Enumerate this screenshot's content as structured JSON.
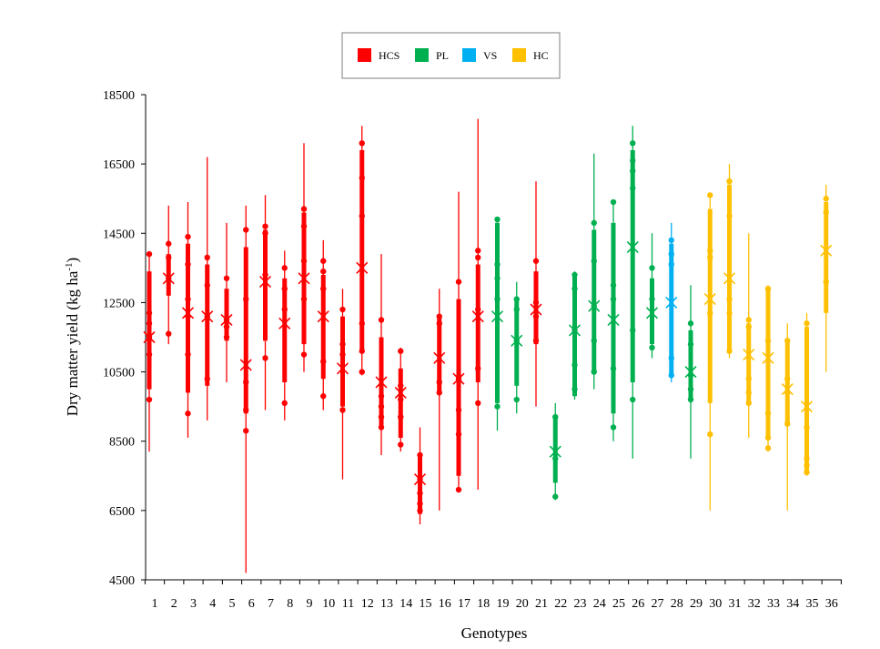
{
  "chart_data": {
    "type": "box",
    "title": "",
    "xlabel": "Genotypes",
    "ylabel_main": "Dry matter yield (kg ha",
    "ylabel_sup": "-1",
    "ylabel_close": ")",
    "ylim": [
      4500,
      18500
    ],
    "yticks": [
      4500,
      6500,
      8500,
      10500,
      12500,
      14500,
      16500,
      18500
    ],
    "categories": [
      "1",
      "2",
      "3",
      "4",
      "5",
      "6",
      "7",
      "8",
      "9",
      "10",
      "11",
      "12",
      "13",
      "14",
      "15",
      "16",
      "17",
      "18",
      "19",
      "20",
      "21",
      "22",
      "23",
      "24",
      "25",
      "26",
      "27",
      "28",
      "29",
      "30",
      "31",
      "32",
      "33",
      "34",
      "35",
      "36"
    ],
    "legend": [
      {
        "name": "HCS",
        "color": "#ff0000"
      },
      {
        "name": "PL",
        "color": "#00b050"
      },
      {
        "name": "VS",
        "color": "#00b0f0"
      },
      {
        "name": "HC",
        "color": "#ffc000"
      }
    ],
    "group_of_genotype": [
      "HCS",
      "HCS",
      "HCS",
      "HCS",
      "HCS",
      "HCS",
      "HCS",
      "HCS",
      "HCS",
      "HCS",
      "HCS",
      "HCS",
      "HCS",
      "HCS",
      "HCS",
      "HCS",
      "HCS",
      "HCS",
      "PL",
      "PL",
      "HCS",
      "PL",
      "PL",
      "PL",
      "PL",
      "PL",
      "PL",
      "VS",
      "PL",
      "HC",
      "HC",
      "HC",
      "HC",
      "HC",
      "HC",
      "HC"
    ],
    "boxes": [
      {
        "min": 8200,
        "q1": 10000,
        "q3": 13400,
        "max": 13900,
        "mean": 11500,
        "points": [
          13900,
          12200,
          11900,
          11500,
          11000,
          9700
        ]
      },
      {
        "min": 11300,
        "q1": 12700,
        "q3": 13900,
        "max": 15300,
        "mean": 13200,
        "points": [
          14200,
          13800,
          13200,
          11600
        ]
      },
      {
        "min": 8600,
        "q1": 9900,
        "q3": 14200,
        "max": 15400,
        "mean": 12200,
        "points": [
          14400,
          13600,
          12600,
          12100,
          11000,
          9300
        ]
      },
      {
        "min": 9100,
        "q1": 10100,
        "q3": 13600,
        "max": 16700,
        "mean": 12100,
        "points": [
          13800,
          13000,
          12100,
          10300
        ]
      },
      {
        "min": 10200,
        "q1": 11400,
        "q3": 12900,
        "max": 14800,
        "mean": 12000,
        "points": [
          13200,
          12000,
          11800,
          11500
        ]
      },
      {
        "min": 4700,
        "q1": 9300,
        "q3": 14100,
        "max": 15300,
        "mean": 10700,
        "points": [
          14600,
          12600,
          10200,
          9400,
          8800
        ]
      },
      {
        "min": 9400,
        "q1": 11400,
        "q3": 14600,
        "max": 15600,
        "mean": 13100,
        "points": [
          14700,
          14500,
          13300,
          10900
        ]
      },
      {
        "min": 9100,
        "q1": 10200,
        "q3": 13200,
        "max": 14000,
        "mean": 11900,
        "points": [
          13500,
          12900,
          12300,
          9600
        ]
      },
      {
        "min": 10500,
        "q1": 11300,
        "q3": 15100,
        "max": 17100,
        "mean": 13200,
        "points": [
          15200,
          14700,
          13700,
          12600,
          11000
        ]
      },
      {
        "min": 9400,
        "q1": 10300,
        "q3": 13300,
        "max": 14300,
        "mean": 12100,
        "points": [
          13700,
          13400,
          12900,
          10800,
          9800
        ]
      },
      {
        "min": 7400,
        "q1": 9500,
        "q3": 12100,
        "max": 12900,
        "mean": 10600,
        "points": [
          12300,
          11300,
          11000,
          9400
        ]
      },
      {
        "min": 10400,
        "q1": 11100,
        "q3": 16900,
        "max": 17600,
        "mean": 13500,
        "points": [
          17100,
          16100,
          15000,
          11900,
          11100,
          10500
        ]
      },
      {
        "min": 8100,
        "q1": 8900,
        "q3": 11500,
        "max": 13900,
        "mean": 10200,
        "points": [
          12000,
          9800,
          9500,
          9200,
          8900
        ]
      },
      {
        "min": 8200,
        "q1": 8600,
        "q3": 10600,
        "max": 11200,
        "mean": 9900,
        "points": [
          11100,
          10100,
          9700,
          9200,
          8400
        ]
      },
      {
        "min": 6100,
        "q1": 6400,
        "q3": 8100,
        "max": 8900,
        "mean": 7400,
        "points": [
          8100,
          7400,
          7000,
          6700,
          6500
        ]
      },
      {
        "min": 6500,
        "q1": 9900,
        "q3": 12100,
        "max": 12900,
        "mean": 10900,
        "points": [
          12100,
          11900,
          10200,
          9900
        ]
      },
      {
        "min": 7100,
        "q1": 7500,
        "q3": 12600,
        "max": 15700,
        "mean": 10300,
        "points": [
          13100,
          10300,
          9400,
          8700,
          7100
        ]
      },
      {
        "min": 7100,
        "q1": 10200,
        "q3": 13600,
        "max": 17800,
        "mean": 12100,
        "points": [
          14000,
          13800,
          12300,
          10600,
          9600
        ]
      },
      {
        "min": 8800,
        "q1": 9600,
        "q3": 14800,
        "max": 14900,
        "mean": 12100,
        "points": [
          14900,
          13600,
          13200,
          12600,
          9500
        ]
      },
      {
        "min": 9300,
        "q1": 10100,
        "q3": 12600,
        "max": 13100,
        "mean": 11400,
        "points": [
          12600,
          12300,
          11400,
          9700
        ]
      },
      {
        "min": 9500,
        "q1": 11300,
        "q3": 13400,
        "max": 16000,
        "mean": 12300,
        "points": [
          13700,
          12500,
          12100,
          11400
        ]
      },
      {
        "min": 6800,
        "q1": 7300,
        "q3": 9200,
        "max": 9600,
        "mean": 8200,
        "points": [
          9200,
          8000,
          6900
        ]
      },
      {
        "min": 9700,
        "q1": 9800,
        "q3": 13300,
        "max": 13400,
        "mean": 11700,
        "points": [
          13300,
          12900,
          11700,
          10700,
          10000
        ]
      },
      {
        "min": 10000,
        "q1": 10500,
        "q3": 14600,
        "max": 16800,
        "mean": 12400,
        "points": [
          14800,
          13700,
          12400,
          11400,
          10500
        ]
      },
      {
        "min": 8500,
        "q1": 9300,
        "q3": 14800,
        "max": 15400,
        "mean": 12000,
        "points": [
          15400,
          13000,
          12600,
          10600,
          8900
        ]
      },
      {
        "min": 8000,
        "q1": 10200,
        "q3": 16900,
        "max": 17600,
        "mean": 14100,
        "points": [
          17100,
          16600,
          16300,
          15800,
          11700,
          9700
        ]
      },
      {
        "min": 10900,
        "q1": 11300,
        "q3": 13200,
        "max": 14500,
        "mean": 12200,
        "points": [
          13500,
          12600,
          11200
        ]
      },
      {
        "min": 10200,
        "q1": 10400,
        "q3": 14200,
        "max": 14800,
        "mean": 12500,
        "points": [
          14300,
          13900,
          13600,
          10900,
          10400
        ]
      },
      {
        "min": 8000,
        "q1": 9700,
        "q3": 11700,
        "max": 13000,
        "mean": 10500,
        "points": [
          11900,
          11300,
          10400,
          10000,
          9700
        ]
      },
      {
        "min": 6500,
        "q1": 9600,
        "q3": 15200,
        "max": 15600,
        "mean": 12600,
        "points": [
          15600,
          14000,
          13800,
          12200,
          8700
        ]
      },
      {
        "min": 10900,
        "q1": 11100,
        "q3": 15900,
        "max": 16500,
        "mean": 13200,
        "points": [
          16000,
          15000,
          12600,
          12200,
          11100
        ]
      },
      {
        "min": 8600,
        "q1": 9600,
        "q3": 11900,
        "max": 14500,
        "mean": 11000,
        "points": [
          12000,
          11800,
          10300,
          9900,
          9600
        ]
      },
      {
        "min": 8200,
        "q1": 8600,
        "q3": 12900,
        "max": 13000,
        "mean": 10900,
        "points": [
          12900,
          11400,
          9300,
          8600,
          8300
        ]
      },
      {
        "min": 6500,
        "q1": 9000,
        "q3": 11400,
        "max": 11900,
        "mean": 10000,
        "points": [
          11400,
          10300,
          9900,
          9000
        ]
      },
      {
        "min": 7500,
        "q1": 7600,
        "q3": 11800,
        "max": 12200,
        "mean": 9500,
        "points": [
          11900,
          8900,
          8000,
          7800,
          7600
        ]
      },
      {
        "min": 10500,
        "q1": 12200,
        "q3": 15400,
        "max": 15900,
        "mean": 14000,
        "points": [
          15500,
          15100,
          13100
        ]
      }
    ],
    "legend_placement": "top-center",
    "grid": false
  }
}
